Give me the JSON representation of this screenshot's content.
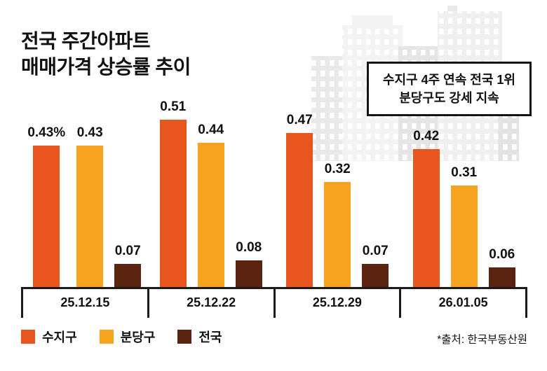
{
  "title": {
    "line1": "전국 주간아파트",
    "line2": "매매가격 상승률 추이"
  },
  "callout": {
    "line1": "수지구 4주 연속 전국 1위",
    "line2": "분당구도 강세 지속"
  },
  "source": "*출처: 한국부동산원",
  "colors": {
    "suji": "#E9551F",
    "bundang": "#F6A41F",
    "national": "#5A2410",
    "axis": "#1a1a1a"
  },
  "chart_data": {
    "type": "bar",
    "title": "전국 주간아파트 매매가격 상승률 추이",
    "unit": "%",
    "categories": [
      "25.12.15",
      "25.12.22",
      "25.12.29",
      "26.01.05"
    ],
    "series": [
      {
        "name": "수지구",
        "color": "#E9551F",
        "values": [
          0.43,
          0.51,
          0.47,
          0.42
        ],
        "labels": [
          "0.43%",
          "0.51",
          "0.47",
          "0.42"
        ]
      },
      {
        "name": "분당구",
        "color": "#F6A41F",
        "values": [
          0.43,
          0.44,
          0.32,
          0.31
        ],
        "labels": [
          "0.43",
          "0.44",
          "0.32",
          "0.31"
        ]
      },
      {
        "name": "전국",
        "color": "#5A2410",
        "values": [
          0.07,
          0.08,
          0.07,
          0.06
        ],
        "labels": [
          "0.07",
          "0.08",
          "0.07",
          "0.06"
        ]
      }
    ],
    "ylim": [
      0,
      0.55
    ],
    "grid": false,
    "legend_position": "bottom-left"
  }
}
